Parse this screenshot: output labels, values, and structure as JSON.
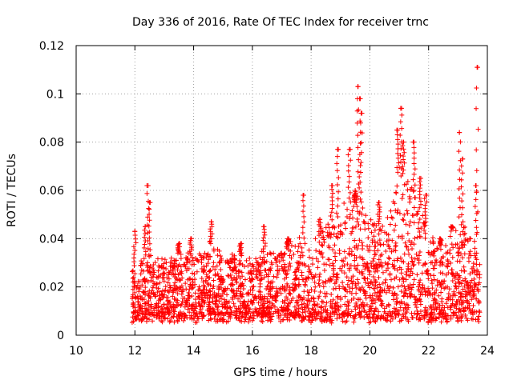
{
  "chart_data": {
    "type": "scatter",
    "title": "Day 336 of 2016, Rate Of TEC Index for receiver trnc",
    "xlabel": "GPS time / hours",
    "ylabel": "ROTI / TECUs",
    "xlim": [
      10,
      24
    ],
    "ylim": [
      0,
      0.12
    ],
    "xticks": [
      10,
      12,
      14,
      16,
      18,
      20,
      22,
      24
    ],
    "xtick_labels": [
      "10",
      "12",
      "14",
      "16",
      "18",
      "20",
      "22",
      "24"
    ],
    "yticks": [
      0,
      0.02,
      0.04,
      0.06,
      0.08,
      0.1,
      0.12
    ],
    "ytick_labels": [
      "0",
      "0.02",
      "0.04",
      "0.06",
      "0.08",
      "0.1",
      "0.12"
    ],
    "grid": true,
    "marker": "+",
    "color": "#ff0000",
    "x_range_of_data": [
      11.9,
      23.75
    ],
    "typical_band": [
      0.007,
      0.035
    ],
    "spikes": [
      {
        "x": 12.0,
        "y": 0.043
      },
      {
        "x": 12.35,
        "y": 0.045
      },
      {
        "x": 12.45,
        "y": 0.062
      },
      {
        "x": 12.5,
        "y": 0.055
      },
      {
        "x": 13.5,
        "y": 0.038
      },
      {
        "x": 13.9,
        "y": 0.04
      },
      {
        "x": 14.6,
        "y": 0.047
      },
      {
        "x": 15.6,
        "y": 0.038
      },
      {
        "x": 16.4,
        "y": 0.045
      },
      {
        "x": 17.2,
        "y": 0.04
      },
      {
        "x": 17.75,
        "y": 0.058
      },
      {
        "x": 18.3,
        "y": 0.048
      },
      {
        "x": 18.7,
        "y": 0.062
      },
      {
        "x": 18.9,
        "y": 0.077
      },
      {
        "x": 19.3,
        "y": 0.077
      },
      {
        "x": 19.5,
        "y": 0.055
      },
      {
        "x": 19.6,
        "y": 0.103
      },
      {
        "x": 19.65,
        "y": 0.098
      },
      {
        "x": 19.7,
        "y": 0.092
      },
      {
        "x": 20.3,
        "y": 0.055
      },
      {
        "x": 20.95,
        "y": 0.085
      },
      {
        "x": 21.05,
        "y": 0.094
      },
      {
        "x": 21.15,
        "y": 0.08
      },
      {
        "x": 21.5,
        "y": 0.08
      },
      {
        "x": 21.7,
        "y": 0.065
      },
      {
        "x": 21.9,
        "y": 0.058
      },
      {
        "x": 22.4,
        "y": 0.04
      },
      {
        "x": 22.8,
        "y": 0.045
      },
      {
        "x": 23.05,
        "y": 0.084
      },
      {
        "x": 23.15,
        "y": 0.073
      },
      {
        "x": 23.6,
        "y": 0.062
      },
      {
        "x": 23.65,
        "y": 0.111
      }
    ],
    "regional_peaks": [
      {
        "x": 11.9,
        "y": 0.028
      },
      {
        "x": 12.5,
        "y": 0.033
      },
      {
        "x": 13.0,
        "y": 0.032
      },
      {
        "x": 13.5,
        "y": 0.034
      },
      {
        "x": 14.0,
        "y": 0.033
      },
      {
        "x": 14.6,
        "y": 0.038
      },
      {
        "x": 15.0,
        "y": 0.032
      },
      {
        "x": 15.5,
        "y": 0.033
      },
      {
        "x": 16.0,
        "y": 0.033
      },
      {
        "x": 16.5,
        "y": 0.035
      },
      {
        "x": 17.0,
        "y": 0.036
      },
      {
        "x": 17.5,
        "y": 0.04
      },
      {
        "x": 18.0,
        "y": 0.036
      },
      {
        "x": 18.5,
        "y": 0.045
      },
      {
        "x": 19.0,
        "y": 0.052
      },
      {
        "x": 19.5,
        "y": 0.06
      },
      {
        "x": 20.0,
        "y": 0.048
      },
      {
        "x": 20.5,
        "y": 0.045
      },
      {
        "x": 21.0,
        "y": 0.07
      },
      {
        "x": 21.5,
        "y": 0.06
      },
      {
        "x": 22.0,
        "y": 0.042
      },
      {
        "x": 22.5,
        "y": 0.036
      },
      {
        "x": 23.0,
        "y": 0.05
      },
      {
        "x": 23.5,
        "y": 0.04
      },
      {
        "x": 23.75,
        "y": 0.03
      }
    ]
  }
}
